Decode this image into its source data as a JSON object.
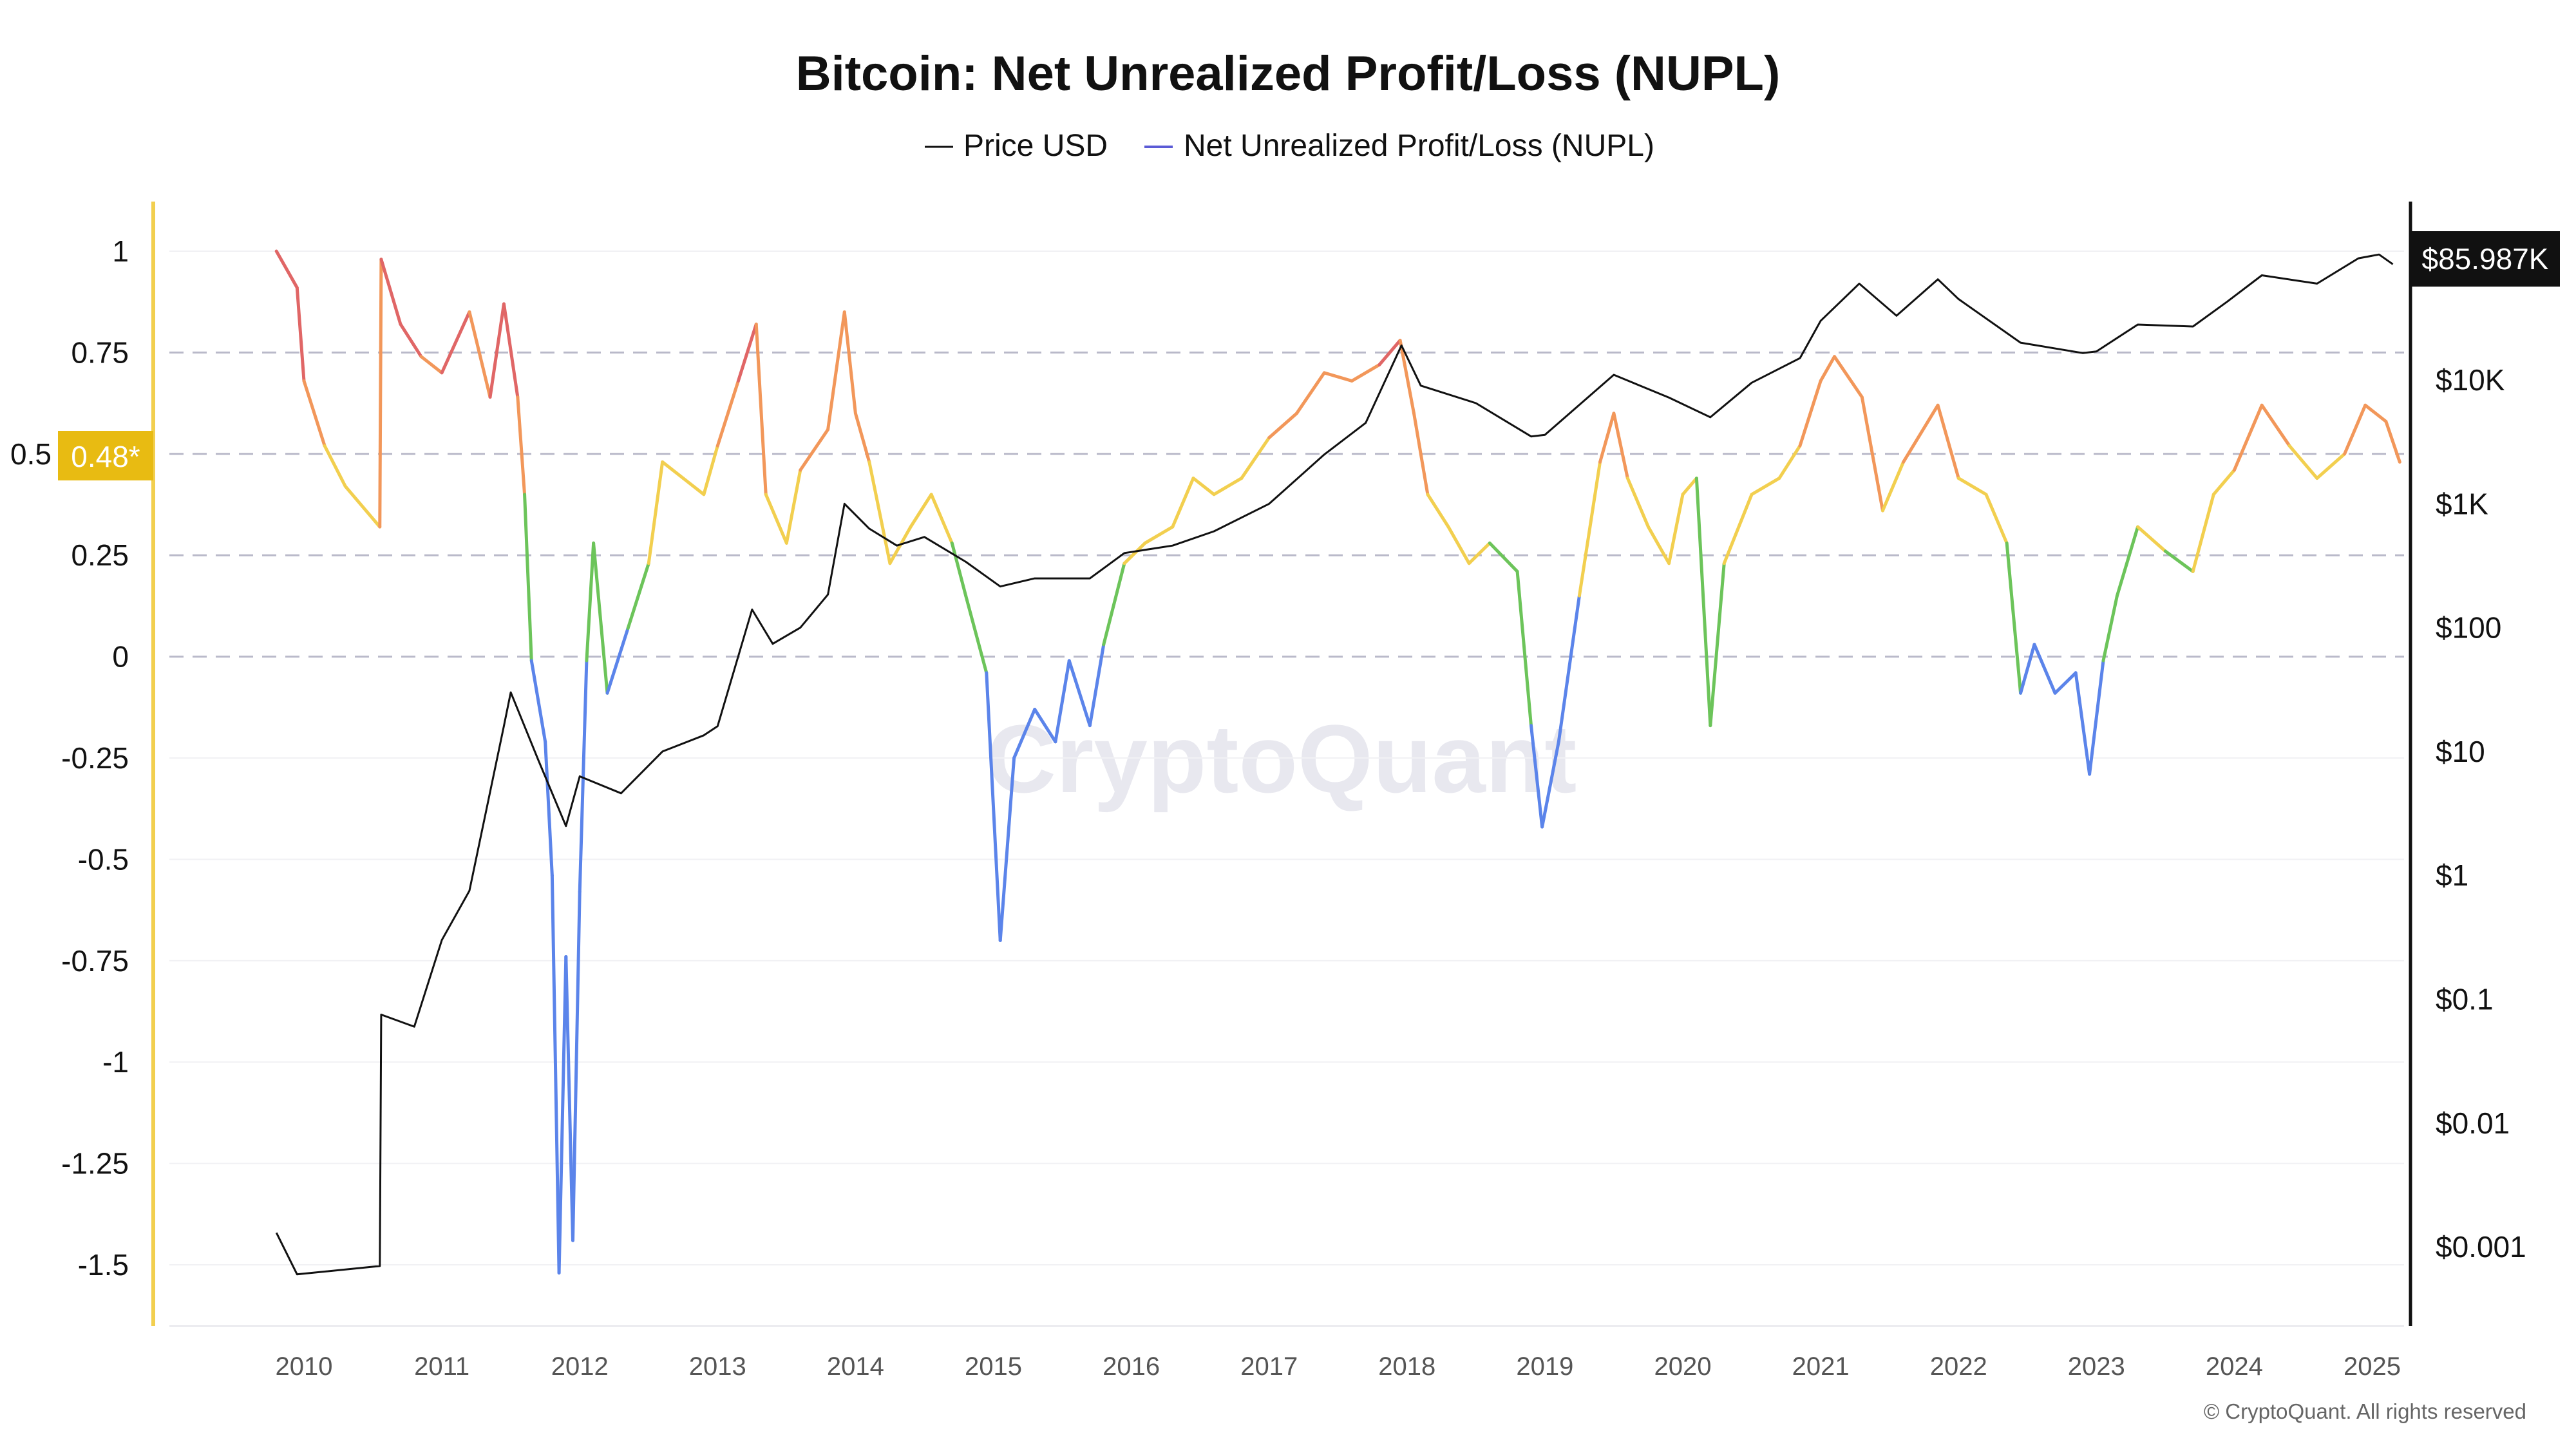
{
  "chart_data": {
    "type": "line",
    "title": "Bitcoin: Net Unrealized Profit/Loss (NUPL)",
    "legend": {
      "placement": "top-center",
      "entries": [
        {
          "label": "Price USD",
          "color": "#111111"
        },
        {
          "label": "Net Unrealized Profit/Loss (NUPL)",
          "color": "#5b5bd6"
        }
      ]
    },
    "x_axis": {
      "ticks": [
        "2010",
        "2011",
        "2012",
        "2013",
        "2014",
        "2015",
        "2016",
        "2017",
        "2018",
        "2019",
        "2020",
        "2021",
        "2022",
        "2023",
        "2024",
        "2025"
      ],
      "range": [
        2009.0,
        2025.3
      ]
    },
    "y_left": {
      "ticks": [
        "1",
        "0.75",
        "0.5",
        "0.25",
        "0",
        "-0.25",
        "-0.5",
        "-0.75",
        "-1",
        "-1.25",
        "-1.5"
      ],
      "tick_values": [
        1,
        0.75,
        0.5,
        0.25,
        0,
        -0.25,
        -0.5,
        -0.75,
        -1,
        -1.25,
        -1.5
      ],
      "range": [
        -1.66,
        1.31
      ],
      "dashed_levels": [
        0.75,
        0.5,
        0.25,
        0
      ],
      "current_value_label": "0.48*",
      "axis_color": "#f2cf4f",
      "badge_color": "#e8bb12"
    },
    "y_right": {
      "scale": "log",
      "ticks": [
        "$10K",
        "$1K",
        "$100",
        "$10",
        "$1",
        "$0.1",
        "$0.01",
        "$0.001"
      ],
      "tick_values": [
        10000,
        1000,
        100,
        10,
        1,
        0.1,
        0.01,
        0.001
      ],
      "current_value_label": "$85.987K"
    },
    "nupl_color_bands": [
      {
        "min": -10,
        "max": 0,
        "color": "#5b84ea"
      },
      {
        "min": 0,
        "max": 0.25,
        "color": "#6cc45a"
      },
      {
        "min": 0.25,
        "max": 0.5,
        "color": "#f2cf4f"
      },
      {
        "min": 0.5,
        "max": 0.75,
        "color": "#f2975a"
      },
      {
        "min": 0.75,
        "max": 10,
        "color": "#e06666"
      }
    ],
    "series": [
      {
        "name": "Net Unrealized Profit/Loss (NUPL)",
        "x": [
          2009.8,
          2009.95,
          2010.0,
          2010.15,
          2010.3,
          2010.55,
          2010.56,
          2010.7,
          2010.85,
          2011.0,
          2011.2,
          2011.35,
          2011.45,
          2011.55,
          2011.6,
          2011.65,
          2011.75,
          2011.8,
          2011.85,
          2011.9,
          2011.95,
          2012.0,
          2012.05,
          2012.1,
          2012.2,
          2012.35,
          2012.5,
          2012.6,
          2012.75,
          2012.9,
          2013.0,
          2013.15,
          2013.28,
          2013.35,
          2013.5,
          2013.6,
          2013.8,
          2013.92,
          2014.0,
          2014.1,
          2014.25,
          2014.4,
          2014.55,
          2014.7,
          2014.8,
          2014.95,
          2015.05,
          2015.15,
          2015.3,
          2015.45,
          2015.55,
          2015.7,
          2015.8,
          2015.95,
          2016.1,
          2016.3,
          2016.45,
          2016.6,
          2016.8,
          2017.0,
          2017.2,
          2017.4,
          2017.6,
          2017.8,
          2017.95,
          2018.05,
          2018.15,
          2018.3,
          2018.45,
          2018.6,
          2018.8,
          2018.9,
          2018.98,
          2019.1,
          2019.25,
          2019.4,
          2019.5,
          2019.6,
          2019.75,
          2019.9,
          2020.0,
          2020.1,
          2020.2,
          2020.3,
          2020.5,
          2020.7,
          2020.85,
          2021.0,
          2021.1,
          2021.3,
          2021.45,
          2021.6,
          2021.85,
          2022.0,
          2022.2,
          2022.35,
          2022.45,
          2022.55,
          2022.7,
          2022.85,
          2022.95,
          2023.05,
          2023.15,
          2023.3,
          2023.5,
          2023.7,
          2023.85,
          2024.0,
          2024.2,
          2024.4,
          2024.6,
          2024.8,
          2024.95,
          2025.1,
          2025.2
        ],
        "values": [
          1.0,
          0.91,
          0.68,
          0.52,
          0.42,
          0.32,
          0.98,
          0.82,
          0.74,
          0.7,
          0.85,
          0.64,
          0.87,
          0.64,
          0.4,
          -0.01,
          -0.21,
          -0.54,
          -1.52,
          -0.74,
          -1.44,
          -0.58,
          -0.01,
          0.28,
          -0.09,
          0.07,
          0.23,
          0.48,
          0.44,
          0.4,
          0.52,
          0.68,
          0.82,
          0.4,
          0.28,
          0.46,
          0.56,
          0.85,
          0.6,
          0.48,
          0.23,
          0.32,
          0.4,
          0.28,
          0.15,
          -0.04,
          -0.7,
          -0.25,
          -0.13,
          -0.21,
          -0.01,
          -0.17,
          0.03,
          0.23,
          0.28,
          0.32,
          0.44,
          0.4,
          0.44,
          0.54,
          0.6,
          0.7,
          0.68,
          0.72,
          0.78,
          0.6,
          0.4,
          0.32,
          0.23,
          0.28,
          0.21,
          -0.17,
          -0.42,
          -0.21,
          0.15,
          0.48,
          0.6,
          0.44,
          0.32,
          0.23,
          0.4,
          0.44,
          -0.17,
          0.23,
          0.4,
          0.44,
          0.52,
          0.68,
          0.74,
          0.64,
          0.36,
          0.48,
          0.62,
          0.44,
          0.4,
          0.28,
          -0.09,
          0.03,
          -0.09,
          -0.04,
          -0.29,
          -0.01,
          0.15,
          0.32,
          0.26,
          0.21,
          0.4,
          0.46,
          0.62,
          0.52,
          0.44,
          0.5,
          0.62,
          0.58,
          0.48
        ]
      },
      {
        "name": "Price USD",
        "x": [
          2009.8,
          2009.95,
          2010.55,
          2010.56,
          2010.8,
          2011.0,
          2011.2,
          2011.45,
          2011.5,
          2011.7,
          2011.9,
          2012.0,
          2012.3,
          2012.6,
          2012.9,
          2013.0,
          2013.25,
          2013.4,
          2013.6,
          2013.8,
          2013.92,
          2014.1,
          2014.3,
          2014.5,
          2014.8,
          2015.05,
          2015.3,
          2015.7,
          2015.95,
          2016.3,
          2016.6,
          2017.0,
          2017.4,
          2017.7,
          2017.96,
          2018.1,
          2018.5,
          2018.9,
          2019.0,
          2019.5,
          2019.9,
          2020.2,
          2020.5,
          2020.85,
          2021.0,
          2021.28,
          2021.55,
          2021.85,
          2022.0,
          2022.45,
          2022.9,
          2023.0,
          2023.3,
          2023.7,
          2023.95,
          2024.2,
          2024.6,
          2024.9,
          2025.05,
          2025.15
        ],
        "values": [
          0.0013,
          0.0006,
          0.0007,
          0.075,
          0.06,
          0.3,
          0.75,
          16,
          30,
          8.5,
          2.5,
          6.3,
          4.6,
          10,
          13.5,
          16,
          140,
          74,
          100,
          185,
          1000,
          630,
          460,
          540,
          340,
          215,
          250,
          250,
          400,
          460,
          600,
          1000,
          2500,
          4500,
          19000,
          9000,
          6500,
          3500,
          3600,
          11000,
          7200,
          5000,
          9500,
          15000,
          30000,
          60000,
          33000,
          65000,
          45000,
          20000,
          16500,
          17000,
          28000,
          27000,
          43000,
          70000,
          60000,
          96000,
          103000,
          86000
        ]
      }
    ]
  },
  "watermark": "CryptoQuant",
  "copyright": "© CryptoQuant. All rights reserved"
}
